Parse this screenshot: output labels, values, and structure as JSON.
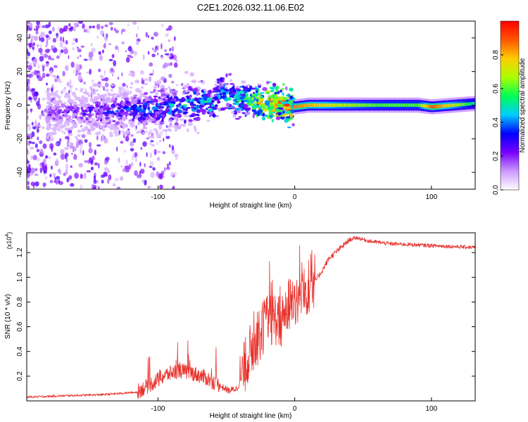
{
  "chart_data": [
    {
      "type": "heatmap",
      "title": "C2E1.2026.032.11.06.E02",
      "xlabel": "Height of straight line (km)",
      "ylabel": "Frequency (Hz)",
      "xlim": [
        -196,
        132
      ],
      "ylim": [
        -50,
        50
      ],
      "x_ticks": [
        -100,
        0,
        100
      ],
      "x_tick_labels": [
        "-100",
        "0",
        "100"
      ],
      "y_ticks": [
        -40,
        -20,
        0,
        20,
        40
      ],
      "y_tick_labels": [
        "-40",
        "-20",
        "0",
        "20",
        "40"
      ],
      "colorbar": {
        "label": "Normalized spectral amplitude",
        "range": [
          0,
          1
        ],
        "ticks": [
          0.0,
          0.2,
          0.4,
          0.6,
          0.8
        ],
        "tick_labels": [
          "0.0",
          "0.2",
          "0.4",
          "0.6",
          "0.8"
        ],
        "colormap": [
          "#ffffff",
          "#cc99ff",
          "#7700ff",
          "#0000ff",
          "#00ccff",
          "#00ff55",
          "#aaff00",
          "#ffcc00",
          "#ff5500",
          "#ff0000"
        ]
      },
      "ridge": {
        "x": [
          -180,
          -160,
          -140,
          -120,
          -100,
          -80,
          -65,
          -60,
          -55,
          -45,
          -35,
          -25,
          -15,
          -5,
          0,
          10,
          30,
          60,
          90,
          100,
          132
        ],
        "frequency_hz": [
          -5,
          -4,
          -4,
          -3,
          -2,
          0,
          3,
          -2,
          8,
          4,
          3,
          2,
          1,
          0,
          -1,
          0,
          0,
          0,
          0,
          -1,
          1
        ],
        "peak_amplitude": [
          0.25,
          0.3,
          0.35,
          0.4,
          0.45,
          0.5,
          0.55,
          0.5,
          0.5,
          0.55,
          0.6,
          0.8,
          0.85,
          0.9,
          0.85,
          0.8,
          0.7,
          0.6,
          0.6,
          0.9,
          0.5
        ]
      }
    },
    {
      "type": "line",
      "xlabel": "Height of straight line (km)",
      "ylabel": "SNR (10 * v/v)",
      "y_multiplier": "(x10",
      "y_multiplier_exp": "4",
      "y_multiplier_close": ")",
      "xlim": [
        -196,
        132
      ],
      "ylim": [
        0,
        1.36
      ],
      "x_ticks": [
        -100,
        0,
        100
      ],
      "x_tick_labels": [
        "-100",
        "0",
        "100"
      ],
      "y_ticks": [
        0.2,
        0.4,
        0.6,
        0.8,
        1.0,
        1.2
      ],
      "y_tick_labels": [
        "0.2",
        "0.4",
        "0.6",
        "0.8",
        "1.0",
        "1.2"
      ],
      "color": "#e8302a",
      "series": [
        {
          "name": "SNR",
          "x": [
            -196,
            -170,
            -140,
            -115,
            -105,
            -95,
            -85,
            -75,
            -65,
            -55,
            -48,
            -42,
            -38,
            -34,
            -30,
            -26,
            -22,
            -18,
            -14,
            -10,
            -6,
            -2,
            2,
            6,
            10,
            14,
            20,
            25,
            30,
            35,
            40,
            45,
            55,
            70,
            90,
            110,
            132
          ],
          "y": [
            0.03,
            0.04,
            0.05,
            0.07,
            0.13,
            0.2,
            0.24,
            0.22,
            0.18,
            0.12,
            0.08,
            0.1,
            0.2,
            0.35,
            0.42,
            0.5,
            0.6,
            0.62,
            0.65,
            0.6,
            0.72,
            0.8,
            0.8,
            0.82,
            0.9,
            0.95,
            1.05,
            1.15,
            1.2,
            1.25,
            1.3,
            1.32,
            1.29,
            1.27,
            1.26,
            1.25,
            1.24
          ]
        }
      ]
    }
  ]
}
